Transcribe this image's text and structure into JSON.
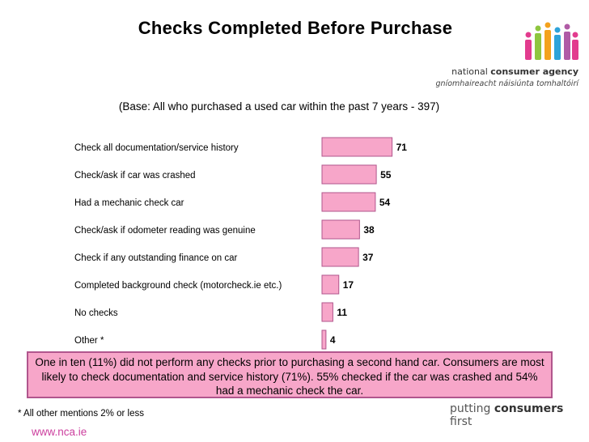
{
  "slide": {
    "title": "Checks Completed Before Purchase",
    "base_note": "(Base:  All who purchased a used car within the past 7 years - 397)",
    "summary": "One in ten (11%) did not perform any checks prior to purchasing a second hand car. Consumers are most likely to check documentation and service history (71%). 55% checked if the car was crashed and 54% had a mechanic check the car.",
    "footnote": "* All other mentions 2% or less",
    "url": "www.nca.ie",
    "tagline_pre": "putting ",
    "tagline_bold": "consumers",
    "tagline_post": " first"
  },
  "logo": {
    "line1_pre": "national ",
    "line1_bold": "consumer agency",
    "line2": "gníomhaireacht náisiúnta tomhaltóirí",
    "figure_colors": [
      "#e23b8e",
      "#8ec63f",
      "#f4a21d",
      "#2ea3d9",
      "#b05ba6",
      "#e23b8e"
    ]
  },
  "colors": {
    "bar_fill": "#f7a6c9",
    "bar_stroke": "#b1568d",
    "summary_fill": "#f7a6c9",
    "accent_pink": "#cc3f9e"
  },
  "chart_data": {
    "type": "bar",
    "orientation": "horizontal",
    "categories": [
      "Check all documentation/service history",
      "Check/ask if car was crashed",
      "Had a mechanic check car",
      "Check/ask if odometer reading was genuine",
      "Check if any outstanding finance on car",
      "Completed background check (motorcheck.ie etc.)",
      "No checks",
      "Other *"
    ],
    "values": [
      71,
      55,
      54,
      38,
      37,
      17,
      11,
      4
    ],
    "title": "Checks Completed Before Purchase",
    "subtitle": "(Base:  All who purchased a used car within the past 7 years - 397)",
    "xlim": [
      0,
      100
    ],
    "grid": false,
    "legend": "none",
    "data_labels": true
  }
}
